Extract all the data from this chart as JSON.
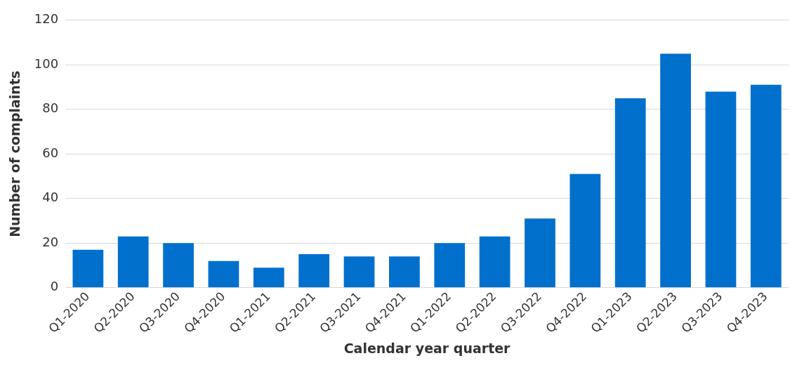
{
  "chart_data": {
    "type": "bar",
    "xlabel": "Calendar year quarter",
    "ylabel": "Number of complaints",
    "categories": [
      "Q1-2020",
      "Q2-2020",
      "Q3-2020",
      "Q4-2020",
      "Q1-2021",
      "Q2-2021",
      "Q3-2021",
      "Q4-2021",
      "Q1-2022",
      "Q2-2022",
      "Q3-2022",
      "Q4-2022",
      "Q1-2023",
      "Q2-2023",
      "Q3-2023",
      "Q4-2023"
    ],
    "values": [
      17,
      23,
      20,
      12,
      9,
      15,
      14,
      14,
      20,
      23,
      31,
      51,
      85,
      105,
      88,
      91
    ],
    "color": "#0070cc",
    "ylim": [
      0,
      120
    ],
    "yticks": [
      0,
      20,
      40,
      60,
      80,
      100,
      120
    ],
    "grid": "y",
    "legend": false
  }
}
